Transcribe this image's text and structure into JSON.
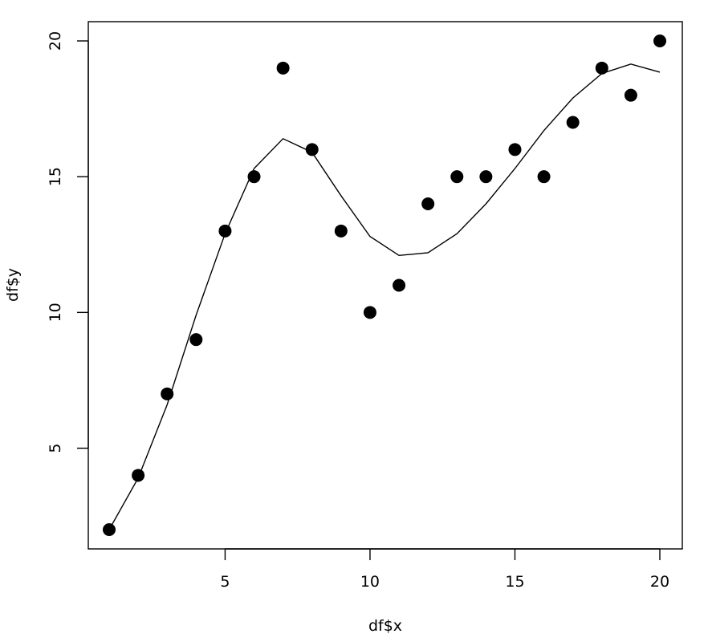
{
  "chart_data": {
    "type": "scatter",
    "xlabel": "df$x",
    "ylabel": "df$y",
    "xlim": [
      1,
      20
    ],
    "ylim": [
      2,
      20
    ],
    "x_ticks": [
      5,
      10,
      15,
      20
    ],
    "y_ticks": [
      5,
      10,
      15,
      20
    ],
    "grid": false,
    "series": [
      {
        "kind": "points",
        "x": [
          1,
          2,
          3,
          4,
          5,
          6,
          7,
          8,
          9,
          10,
          11,
          12,
          13,
          14,
          15,
          16,
          17,
          18,
          19,
          20
        ],
        "y": [
          2,
          4,
          7,
          9,
          13,
          15,
          19,
          16,
          13,
          10,
          11,
          14,
          15,
          15,
          16,
          15,
          17,
          19,
          18,
          20
        ]
      },
      {
        "kind": "line",
        "x": [
          1,
          2,
          3,
          4,
          5,
          6,
          7,
          8,
          9,
          10,
          11,
          12,
          13,
          14,
          15,
          16,
          17,
          18,
          19,
          20
        ],
        "y": [
          2.0,
          3.9,
          6.6,
          9.9,
          12.9,
          15.3,
          16.4,
          15.9,
          14.3,
          12.8,
          12.1,
          12.2,
          12.9,
          14.0,
          15.3,
          16.7,
          17.9,
          18.8,
          19.15,
          18.85
        ]
      }
    ]
  }
}
